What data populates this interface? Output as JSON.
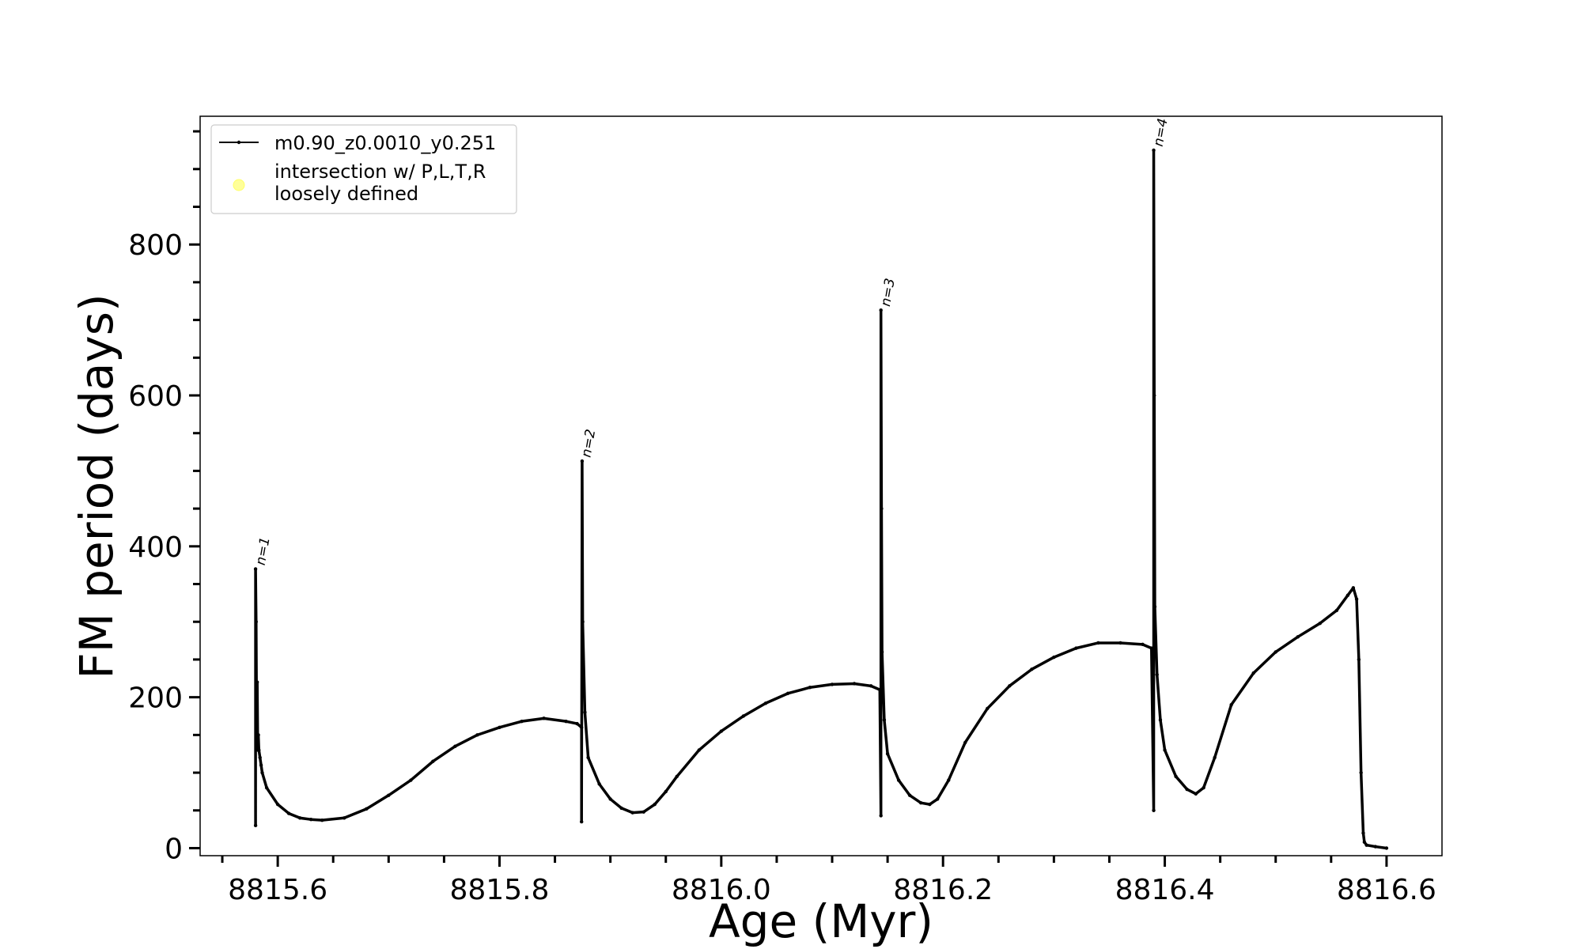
{
  "chart_data": {
    "type": "line",
    "title": "",
    "xlabel": "Age (Myr)",
    "ylabel": "FM period (days)",
    "xlim": [
      8815.53,
      8816.65
    ],
    "ylim": [
      -10,
      970
    ],
    "x_ticks": [
      8815.6,
      8815.8,
      8816.0,
      8816.2,
      8816.4,
      8816.6
    ],
    "x_tick_labels": [
      "8815.6",
      "8815.8",
      "8816.0",
      "8816.2",
      "8816.4",
      "8816.6"
    ],
    "x_minor_step": 0.05,
    "y_ticks": [
      0,
      200,
      400,
      600,
      800
    ],
    "y_tick_labels": [
      "0",
      "200",
      "400",
      "600",
      "800"
    ],
    "y_minor_step": 50,
    "grid": false,
    "legend": {
      "placement": "upper-left",
      "entries": [
        {
          "label": "m0.90_z0.0010_y0.251",
          "marker": "line",
          "color": "#000000"
        },
        {
          "label": "intersection w/ P,L,T,R",
          "label_line2": "loosely defined",
          "marker": "circle",
          "color": "#ffff99"
        }
      ]
    },
    "series": [
      {
        "name": "m0.90_z0.0010_y0.251",
        "color": "#000000",
        "x": [
          8815.58,
          8815.58,
          8815.5805,
          8815.581,
          8815.5815,
          8815.582,
          8815.5825,
          8815.583,
          8815.584,
          8815.585,
          8815.586,
          8815.59,
          8815.6,
          8815.61,
          8815.62,
          8815.63,
          8815.64,
          8815.66,
          8815.68,
          8815.7,
          8815.72,
          8815.74,
          8815.76,
          8815.78,
          8815.8,
          8815.82,
          8815.84,
          8815.86,
          8815.87,
          8815.874,
          8815.874,
          8815.8745,
          8815.875,
          8815.877,
          8815.88,
          8815.89,
          8815.9,
          8815.91,
          8815.92,
          8815.93,
          8815.94,
          8815.95,
          8815.96,
          8815.98,
          8816.0,
          8816.02,
          8816.04,
          8816.06,
          8816.08,
          8816.1,
          8816.12,
          8816.135,
          8816.143,
          8816.144,
          8816.144,
          8816.1445,
          8816.145,
          8816.147,
          8816.15,
          8816.16,
          8816.17,
          8816.18,
          8816.188,
          8816.195,
          8816.205,
          8816.22,
          8816.24,
          8816.26,
          8816.28,
          8816.3,
          8816.32,
          8816.34,
          8816.36,
          8816.38,
          8816.388,
          8816.39,
          8816.39,
          8816.3905,
          8816.391,
          8816.393,
          8816.396,
          8816.4,
          8816.41,
          8816.42,
          8816.428,
          8816.435,
          8816.445,
          8816.46,
          8816.48,
          8816.5,
          8816.52,
          8816.54,
          8816.555,
          8816.565,
          8816.57,
          8816.573,
          8816.575,
          8816.577,
          8816.579,
          8816.58,
          8816.582,
          8816.59,
          8816.6
        ],
        "y": [
          30,
          370,
          300,
          150,
          220,
          130,
          150,
          130,
          120,
          110,
          100,
          80,
          58,
          46,
          40,
          38,
          37,
          40,
          52,
          70,
          90,
          115,
          135,
          150,
          160,
          168,
          172,
          168,
          165,
          160,
          35,
          513,
          300,
          180,
          120,
          85,
          65,
          53,
          47,
          48,
          58,
          75,
          95,
          130,
          155,
          175,
          192,
          205,
          213,
          217,
          218,
          215,
          210,
          43,
          713,
          450,
          260,
          170,
          125,
          90,
          70,
          60,
          58,
          65,
          90,
          140,
          185,
          215,
          237,
          253,
          265,
          272,
          272,
          270,
          265,
          50,
          925,
          600,
          320,
          230,
          170,
          130,
          95,
          78,
          72,
          80,
          120,
          190,
          232,
          260,
          280,
          298,
          315,
          335,
          345,
          330,
          250,
          100,
          20,
          8,
          4,
          2,
          0
        ]
      }
    ],
    "annotations": [
      {
        "text": "n=1",
        "x": 8815.581,
        "y": 372
      },
      {
        "text": "n=2",
        "x": 8815.8747,
        "y": 515
      },
      {
        "text": "n=3",
        "x": 8816.1447,
        "y": 715
      },
      {
        "text": "n=4",
        "x": 8816.3907,
        "y": 927
      }
    ]
  }
}
